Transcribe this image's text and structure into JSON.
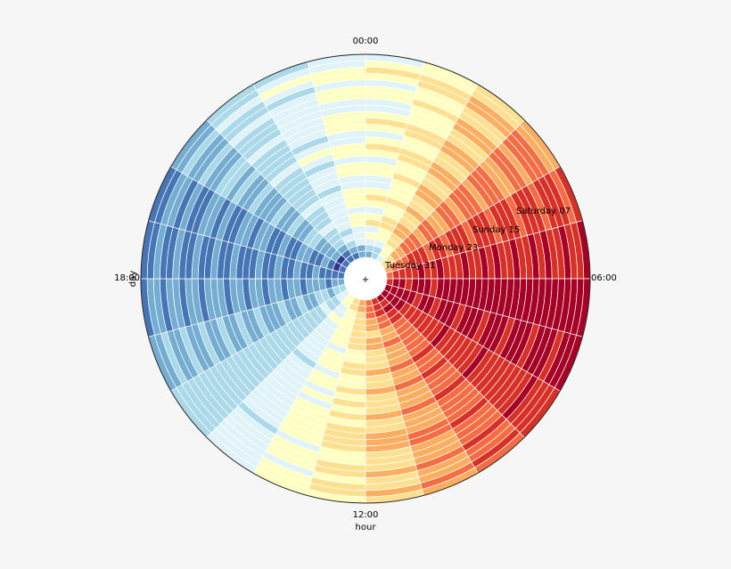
{
  "chart_data": {
    "type": "heatmap",
    "projection": "polar",
    "title": "",
    "xlabel": "hour",
    "ylabel": "day",
    "angular_ticks": [
      "00:00",
      "06:00",
      "12:00",
      "18:00"
    ],
    "radial_ticks": [
      "Tuesday 31",
      "Monday 23",
      "Sunday 15",
      "Saturday 07"
    ],
    "colormap": "RdYlBu_r",
    "colormap_stops": [
      "#313695",
      "#4575b4",
      "#74add1",
      "#abd9e9",
      "#e0f3f8",
      "#ffffbf",
      "#fee090",
      "#fdae61",
      "#f46d43",
      "#d73027",
      "#a50026"
    ],
    "center_marker": "+",
    "grid": true,
    "angular_bins": 24,
    "values_scale": "0-10 colormap level",
    "rings": [
      [
        2,
        3,
        4,
        6,
        7,
        8,
        9,
        10,
        10,
        10,
        9,
        8,
        7,
        6,
        5,
        4,
        3,
        2,
        1,
        1,
        1,
        1,
        1,
        2
      ],
      [
        3,
        3,
        5,
        6,
        8,
        9,
        10,
        10,
        10,
        9,
        9,
        8,
        7,
        6,
        5,
        4,
        3,
        2,
        1,
        0,
        0,
        1,
        2,
        2
      ],
      [
        4,
        4,
        5,
        7,
        8,
        9,
        10,
        10,
        10,
        10,
        9,
        8,
        6,
        5,
        4,
        3,
        2,
        1,
        1,
        1,
        2,
        2,
        3,
        4
      ],
      [
        5,
        5,
        6,
        7,
        8,
        9,
        9,
        10,
        10,
        9,
        8,
        7,
        6,
        5,
        4,
        3,
        3,
        2,
        1,
        2,
        2,
        3,
        4,
        4
      ],
      [
        4,
        5,
        6,
        8,
        9,
        9,
        10,
        10,
        9,
        9,
        8,
        7,
        6,
        5,
        5,
        4,
        3,
        2,
        2,
        1,
        2,
        3,
        3,
        4
      ],
      [
        6,
        6,
        7,
        8,
        9,
        10,
        10,
        9,
        9,
        8,
        7,
        6,
        6,
        5,
        4,
        3,
        2,
        2,
        1,
        1,
        2,
        3,
        4,
        5
      ],
      [
        5,
        6,
        7,
        8,
        9,
        9,
        10,
        10,
        9,
        8,
        7,
        7,
        6,
        5,
        4,
        3,
        2,
        1,
        1,
        2,
        3,
        4,
        4,
        5
      ],
      [
        4,
        5,
        6,
        7,
        8,
        9,
        9,
        10,
        9,
        8,
        8,
        7,
        6,
        5,
        4,
        3,
        3,
        2,
        2,
        2,
        3,
        3,
        4,
        4
      ],
      [
        5,
        5,
        6,
        8,
        9,
        10,
        10,
        9,
        9,
        8,
        7,
        6,
        5,
        4,
        4,
        3,
        2,
        2,
        1,
        1,
        2,
        3,
        4,
        5
      ],
      [
        6,
        6,
        7,
        8,
        9,
        9,
        10,
        10,
        9,
        8,
        7,
        6,
        5,
        5,
        4,
        3,
        2,
        1,
        1,
        1,
        2,
        3,
        4,
        5
      ],
      [
        5,
        5,
        6,
        7,
        8,
        9,
        10,
        10,
        9,
        8,
        7,
        6,
        6,
        5,
        4,
        3,
        3,
        2,
        2,
        2,
        3,
        4,
        4,
        5
      ],
      [
        4,
        5,
        6,
        7,
        9,
        9,
        10,
        10,
        10,
        9,
        8,
        7,
        6,
        5,
        4,
        3,
        2,
        2,
        1,
        1,
        2,
        3,
        3,
        4
      ],
      [
        4,
        5,
        7,
        8,
        9,
        10,
        10,
        9,
        9,
        8,
        7,
        6,
        5,
        4,
        3,
        3,
        2,
        1,
        1,
        1,
        2,
        3,
        4,
        4
      ],
      [
        5,
        6,
        7,
        8,
        9,
        9,
        10,
        10,
        9,
        8,
        7,
        6,
        5,
        5,
        4,
        3,
        2,
        2,
        2,
        2,
        3,
        3,
        4,
        5
      ],
      [
        5,
        5,
        6,
        7,
        8,
        9,
        10,
        10,
        9,
        9,
        8,
        7,
        6,
        5,
        4,
        3,
        3,
        2,
        1,
        2,
        2,
        3,
        4,
        5
      ],
      [
        4,
        5,
        6,
        8,
        9,
        10,
        10,
        10,
        9,
        8,
        7,
        6,
        5,
        4,
        4,
        3,
        2,
        1,
        1,
        1,
        2,
        3,
        3,
        4
      ],
      [
        5,
        6,
        7,
        8,
        9,
        9,
        10,
        9,
        9,
        8,
        7,
        6,
        6,
        5,
        4,
        3,
        2,
        2,
        1,
        2,
        2,
        3,
        4,
        5
      ],
      [
        6,
        6,
        7,
        8,
        9,
        10,
        10,
        10,
        9,
        8,
        7,
        6,
        5,
        4,
        4,
        3,
        3,
        2,
        2,
        2,
        3,
        4,
        5,
        5
      ],
      [
        5,
        5,
        6,
        7,
        8,
        9,
        10,
        10,
        10,
        9,
        8,
        7,
        6,
        5,
        4,
        3,
        2,
        1,
        1,
        1,
        2,
        3,
        4,
        4
      ],
      [
        4,
        5,
        6,
        8,
        9,
        9,
        10,
        10,
        9,
        8,
        7,
        6,
        5,
        5,
        4,
        3,
        2,
        2,
        1,
        1,
        2,
        3,
        3,
        4
      ],
      [
        5,
        6,
        7,
        8,
        9,
        10,
        10,
        9,
        9,
        8,
        7,
        6,
        6,
        5,
        4,
        3,
        3,
        2,
        2,
        2,
        3,
        3,
        4,
        5
      ],
      [
        6,
        6,
        7,
        8,
        9,
        9,
        10,
        10,
        9,
        8,
        7,
        7,
        6,
        5,
        4,
        3,
        2,
        2,
        1,
        1,
        2,
        3,
        4,
        5
      ],
      [
        5,
        5,
        6,
        7,
        8,
        9,
        10,
        10,
        9,
        8,
        8,
        7,
        6,
        5,
        4,
        3,
        2,
        1,
        1,
        2,
        3,
        4,
        4,
        5
      ],
      [
        4,
        5,
        6,
        7,
        9,
        10,
        10,
        10,
        9,
        9,
        8,
        7,
        6,
        5,
        4,
        3,
        3,
        2,
        2,
        2,
        3,
        3,
        4,
        4
      ],
      [
        4,
        5,
        7,
        8,
        9,
        9,
        10,
        9,
        9,
        8,
        7,
        6,
        5,
        4,
        3,
        3,
        2,
        2,
        1,
        1,
        2,
        3,
        4,
        4
      ],
      [
        5,
        6,
        7,
        8,
        9,
        10,
        10,
        10,
        9,
        8,
        7,
        6,
        5,
        5,
        4,
        3,
        2,
        1,
        1,
        1,
        2,
        3,
        4,
        5
      ],
      [
        5,
        5,
        6,
        7,
        8,
        9,
        10,
        10,
        9,
        8,
        7,
        6,
        6,
        5,
        4,
        3,
        3,
        2,
        2,
        2,
        3,
        4,
        4,
        5
      ],
      [
        4,
        5,
        6,
        8,
        9,
        9,
        10,
        10,
        10,
        9,
        8,
        7,
        6,
        5,
        4,
        3,
        2,
        2,
        1,
        1,
        2,
        3,
        3,
        4
      ],
      [
        5,
        6,
        7,
        8,
        9,
        10,
        10,
        9,
        9,
        8,
        7,
        6,
        5,
        4,
        4,
        3,
        2,
        1,
        1,
        2,
        2,
        3,
        4,
        5
      ],
      [
        6,
        6,
        7,
        8,
        9,
        9,
        10,
        10,
        9,
        8,
        7,
        6,
        6,
        5,
        4,
        3,
        3,
        2,
        2,
        2,
        3,
        4,
        5,
        5
      ],
      [
        5,
        5,
        6,
        7,
        8,
        9,
        10,
        10,
        9,
        9,
        8,
        7,
        6,
        5,
        4,
        3,
        2,
        2,
        1,
        1,
        2,
        3,
        4,
        4
      ],
      [
        4,
        5,
        6,
        7,
        9,
        10,
        10,
        10,
        9,
        8,
        7,
        6,
        5,
        5,
        4,
        3,
        2,
        1,
        1,
        1,
        2,
        3,
        3,
        4
      ]
    ]
  }
}
